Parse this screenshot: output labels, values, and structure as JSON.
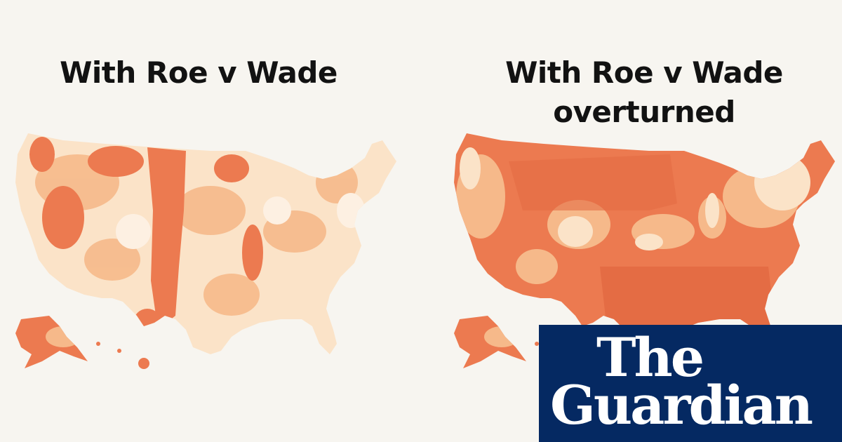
{
  "left_map": {
    "title": "With Roe v Wade"
  },
  "right_map": {
    "title": "With Roe v Wade overturned"
  },
  "logo": {
    "line1": "The",
    "line2": "Guardian"
  }
}
